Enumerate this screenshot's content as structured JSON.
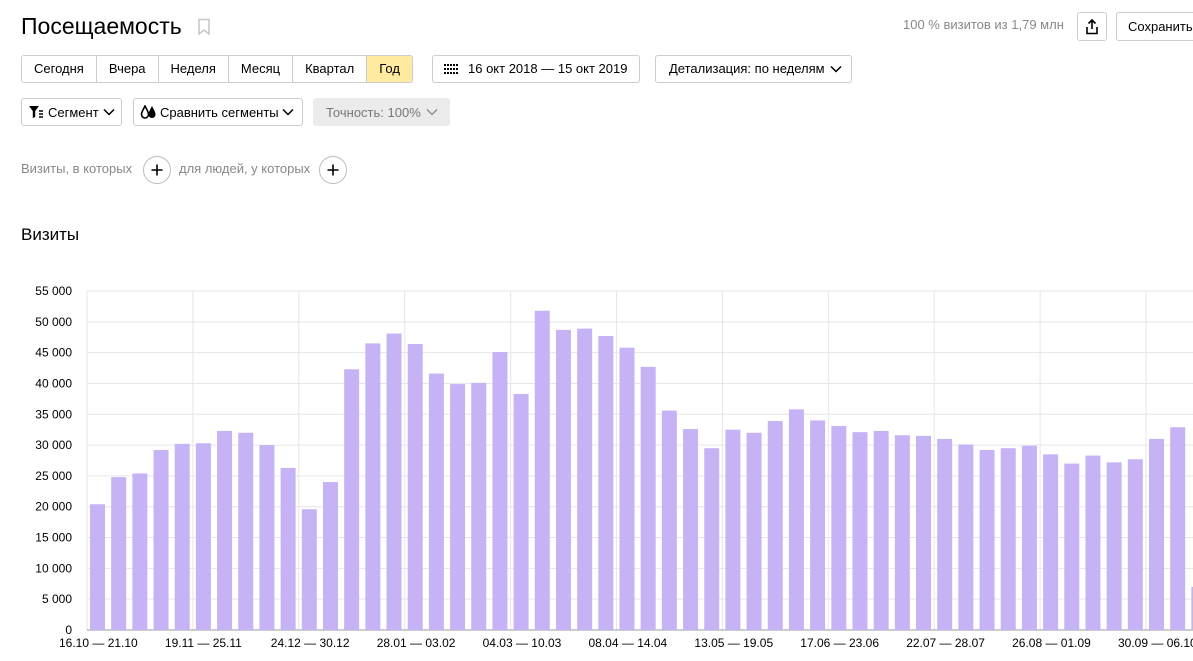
{
  "header": {
    "title": "Посещаемость",
    "sample_info": "100 % визитов из 1,79 млн",
    "save_label": "Сохранить"
  },
  "periods": [
    {
      "label": "Сегодня",
      "active": false
    },
    {
      "label": "Вчера",
      "active": false
    },
    {
      "label": "Неделя",
      "active": false
    },
    {
      "label": "Месяц",
      "active": false
    },
    {
      "label": "Квартал",
      "active": false
    },
    {
      "label": "Год",
      "active": true
    }
  ],
  "date_range": "16 окт 2018 — 15 окт 2019",
  "detail_label": "Детализация: по неделям",
  "segment_label": "Сегмент",
  "compare_label": "Сравнить сегменты",
  "accuracy_label": "Точность: 100%",
  "filters": {
    "visits_label": "Визиты, в которых",
    "people_label": "для людей, у которых"
  },
  "section_title": "Визиты",
  "colors": {
    "bar": "#c6b3f5",
    "active_period": "#ffeba0",
    "grid": "#e6e6e6"
  },
  "icons": {
    "bookmark": "bookmark-icon",
    "share": "share-icon",
    "calendar": "calendar-icon",
    "filter": "funnel-icon",
    "compare": "compare-segments-icon",
    "chevron": "chevron-down-icon",
    "add": "plus-icon"
  },
  "chart_data": {
    "type": "bar",
    "title": "",
    "xlabel": "",
    "ylabel": "",
    "ylim": [
      0,
      55000
    ],
    "y_ticks": [
      "0",
      "5 000",
      "10 000",
      "15 000",
      "20 000",
      "25 000",
      "30 000",
      "35 000",
      "40 000",
      "45 000",
      "50 000",
      "55 000"
    ],
    "x_tick_labels": [
      {
        "index": 0,
        "label": "16.10 — 21.10"
      },
      {
        "index": 5,
        "label": "19.11 — 25.11"
      },
      {
        "index": 10,
        "label": "24.12 — 30.12"
      },
      {
        "index": 15,
        "label": "28.01 — 03.02"
      },
      {
        "index": 20,
        "label": "04.03 — 10.03"
      },
      {
        "index": 25,
        "label": "08.04 — 14.04"
      },
      {
        "index": 30,
        "label": "13.05 — 19.05"
      },
      {
        "index": 35,
        "label": "17.06 — 23.06"
      },
      {
        "index": 40,
        "label": "22.07 — 28.07"
      },
      {
        "index": 45,
        "label": "26.08 — 01.09"
      },
      {
        "index": 50,
        "label": "30.09 — 06.10"
      }
    ],
    "grid": true,
    "series": [
      {
        "values": [
          20400,
          24800,
          25400,
          29200,
          30200,
          30300,
          32300,
          32000,
          30000,
          26300,
          19600,
          24000,
          42300,
          46500,
          48100,
          46400,
          41600,
          39900,
          40100,
          45100,
          38300,
          51800,
          48700,
          48900,
          47700,
          45800,
          42700,
          35600,
          32600,
          29500,
          32500,
          32000,
          33900,
          35800,
          34000,
          33100,
          32100,
          32300,
          31600,
          31500,
          31000,
          30100,
          29200,
          29500,
          29900,
          28500,
          27000,
          28300,
          27200,
          27700,
          31000,
          32900,
          7000
        ]
      }
    ]
  }
}
